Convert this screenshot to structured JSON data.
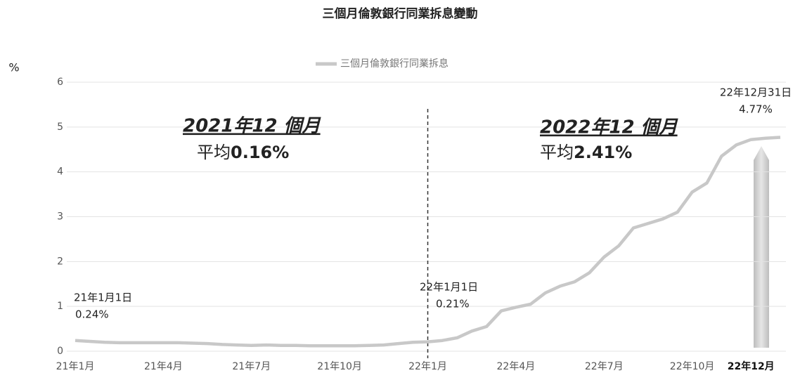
{
  "chart_data": {
    "type": "line",
    "title": "三個月倫敦銀行同業拆息變動",
    "y_label": "%",
    "x": [
      0,
      0.5,
      1,
      1.5,
      2,
      2.5,
      3,
      3.5,
      4,
      4.5,
      5,
      5.5,
      6,
      6.5,
      7,
      7.5,
      8,
      8.5,
      9,
      9.5,
      10,
      10.5,
      11,
      11.5,
      12,
      12.5,
      13,
      13.5,
      14,
      14.5,
      15,
      15.5,
      16,
      16.5,
      17,
      17.5,
      18,
      18.5,
      19,
      19.5,
      20,
      20.5,
      21,
      21.5,
      22,
      22.5,
      23,
      23.5,
      24
    ],
    "series": [
      {
        "name": "三個月倫敦銀行同業拆息",
        "color": "#c8c8c8",
        "values": [
          0.24,
          0.22,
          0.2,
          0.19,
          0.19,
          0.19,
          0.19,
          0.19,
          0.18,
          0.17,
          0.15,
          0.14,
          0.13,
          0.14,
          0.13,
          0.13,
          0.12,
          0.12,
          0.12,
          0.12,
          0.13,
          0.14,
          0.17,
          0.2,
          0.21,
          0.24,
          0.3,
          0.45,
          0.55,
          0.9,
          0.98,
          1.05,
          1.3,
          1.45,
          1.55,
          1.75,
          2.1,
          2.35,
          2.75,
          2.85,
          2.95,
          3.1,
          3.55,
          3.75,
          4.35,
          4.6,
          4.72,
          4.75,
          4.77
        ]
      }
    ],
    "xlim": [
      0,
      24
    ],
    "xticks": [
      {
        "value": 0,
        "label": "21年1月"
      },
      {
        "value": 3,
        "label": "21年4月"
      },
      {
        "value": 6,
        "label": "21年7月"
      },
      {
        "value": 9,
        "label": "21年10月"
      },
      {
        "value": 12,
        "label": "22年1月"
      },
      {
        "value": 15,
        "label": "22年4月"
      },
      {
        "value": 18,
        "label": "22年7月"
      },
      {
        "value": 21,
        "label": "22年10月"
      },
      {
        "value": 23,
        "label": "22年12月"
      }
    ],
    "ylim": [
      0,
      6
    ],
    "yticks": [
      0,
      1,
      2,
      3,
      4,
      5,
      6
    ],
    "grid": true,
    "divider_x": 12,
    "annotations": [
      {
        "period": "2021年12 個月",
        "prefix": "平均",
        "average": "0.16%"
      },
      {
        "period": "2022年12 個月",
        "prefix": "平均",
        "average": "2.41%"
      }
    ],
    "point_labels": [
      {
        "date": "21年1月1日",
        "value": "0.24%"
      },
      {
        "date": "22年1月1日",
        "value": "0.21%"
      },
      {
        "date": "22年12月31日",
        "value": "4.77%"
      }
    ]
  }
}
